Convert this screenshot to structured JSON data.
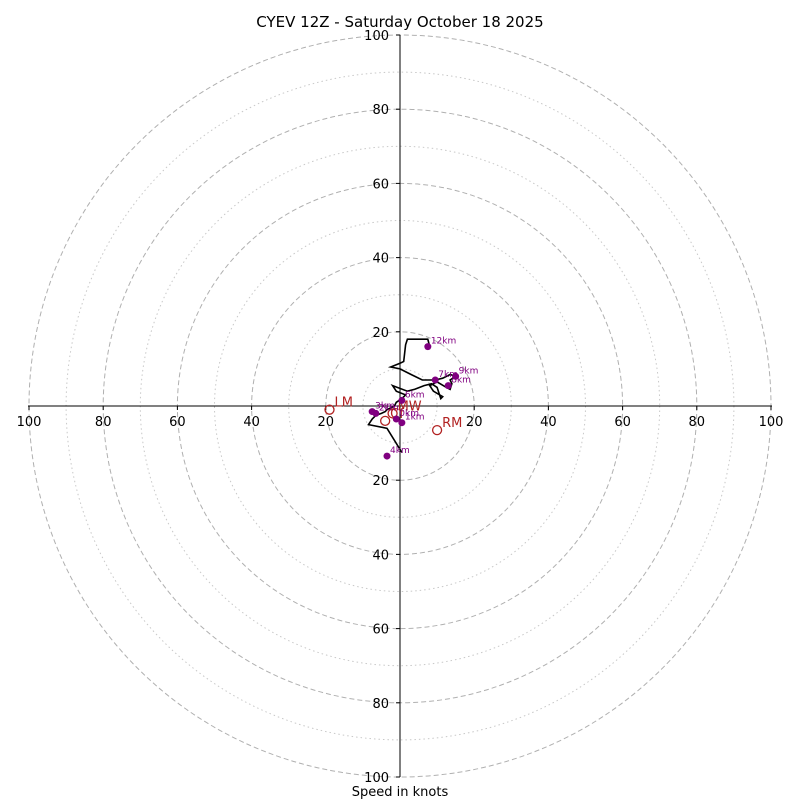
{
  "chart_data": {
    "type": "hodograph",
    "title": "CYEV 12Z - Saturday October 18 2025",
    "xlabel": "Speed in knots",
    "axis_range": [
      -100,
      100
    ],
    "tick_labels": [
      "100",
      "80",
      "60",
      "40",
      "20",
      "20",
      "40",
      "60",
      "80",
      "100"
    ],
    "tick_values": [
      -100,
      -80,
      -60,
      -40,
      -20,
      20,
      40,
      60,
      80,
      100
    ],
    "rings_major": [
      20,
      40,
      60,
      80,
      100
    ],
    "rings_minor": [
      10,
      30,
      50,
      70,
      90
    ],
    "colors": {
      "trace": "#000000",
      "marker": "#800080",
      "storm_motion": "#b22222",
      "ring": "#b0b0b0",
      "axis": "#000000"
    },
    "hodograph_trace": [
      [
        0.5,
        -12.5
      ],
      [
        -3.5,
        -6.0
      ],
      [
        -8.5,
        -5.0
      ],
      [
        -7.5,
        -3.5
      ],
      [
        -6.5,
        -2.5
      ],
      [
        -5.0,
        -2.0
      ],
      [
        -4.0,
        -1.5
      ],
      [
        -3.5,
        -1.0
      ],
      [
        -2.5,
        -0.5
      ],
      [
        -1.5,
        0.0
      ],
      [
        -1.0,
        1.0
      ],
      [
        0.5,
        2.0
      ],
      [
        1.5,
        3.0
      ],
      [
        -1.0,
        4.0
      ],
      [
        -2.0,
        5.5
      ],
      [
        2.0,
        4.0
      ],
      [
        4.0,
        4.5
      ],
      [
        6.5,
        5.5
      ],
      [
        8.5,
        6.0
      ],
      [
        10.0,
        5.0
      ],
      [
        11.0,
        2.0
      ],
      [
        11.5,
        2.5
      ],
      [
        9.0,
        4.0
      ],
      [
        8.0,
        5.5
      ],
      [
        10.0,
        6.5
      ],
      [
        12.5,
        5.0
      ],
      [
        13.5,
        4.5
      ],
      [
        14.0,
        6.0
      ],
      [
        13.5,
        7.0
      ],
      [
        15.0,
        8.0
      ],
      [
        13.5,
        8.5
      ],
      [
        11.5,
        7.5
      ],
      [
        9.5,
        7.0
      ],
      [
        7.5,
        7.0
      ],
      [
        6.0,
        7.0
      ],
      [
        3.0,
        8.5
      ],
      [
        0.0,
        10.0
      ],
      [
        -2.5,
        10.5
      ],
      [
        0.0,
        11.5
      ],
      [
        1.0,
        12.0
      ],
      [
        1.5,
        16.5
      ],
      [
        2.0,
        18.0
      ],
      [
        5.0,
        18.0
      ],
      [
        7.5,
        18.0
      ],
      [
        8.0,
        16.0
      ]
    ],
    "height_markers": [
      {
        "label": "0km",
        "u": -1.0,
        "v": -3.5
      },
      {
        "label": "1km",
        "u": 0.5,
        "v": -4.5
      },
      {
        "label": "2km",
        "u": -6.5,
        "v": -2.0
      },
      {
        "label": "3km",
        "u": -7.5,
        "v": -1.5
      },
      {
        "label": "4km",
        "u": -3.5,
        "v": -13.5
      },
      {
        "label": "6km",
        "u": 0.5,
        "v": 1.5
      },
      {
        "label": "7km",
        "u": 9.5,
        "v": 7.0
      },
      {
        "label": "8km",
        "u": 13.0,
        "v": 5.5
      },
      {
        "label": "9km",
        "u": 15.0,
        "v": 8.0
      },
      {
        "label": "12km",
        "u": 7.5,
        "v": 16.0
      }
    ],
    "storm_motion": [
      {
        "label": "RM",
        "u": 10.0,
        "v": -6.5
      },
      {
        "label": "LM",
        "u": -19.0,
        "v": -1.0
      },
      {
        "label": "MW",
        "u": -2.0,
        "v": -2.0
      },
      {
        "label": "Cf",
        "u": -4.0,
        "v": -4.0
      }
    ],
    "mw_label": "MW",
    "cf_label": "Cf"
  }
}
